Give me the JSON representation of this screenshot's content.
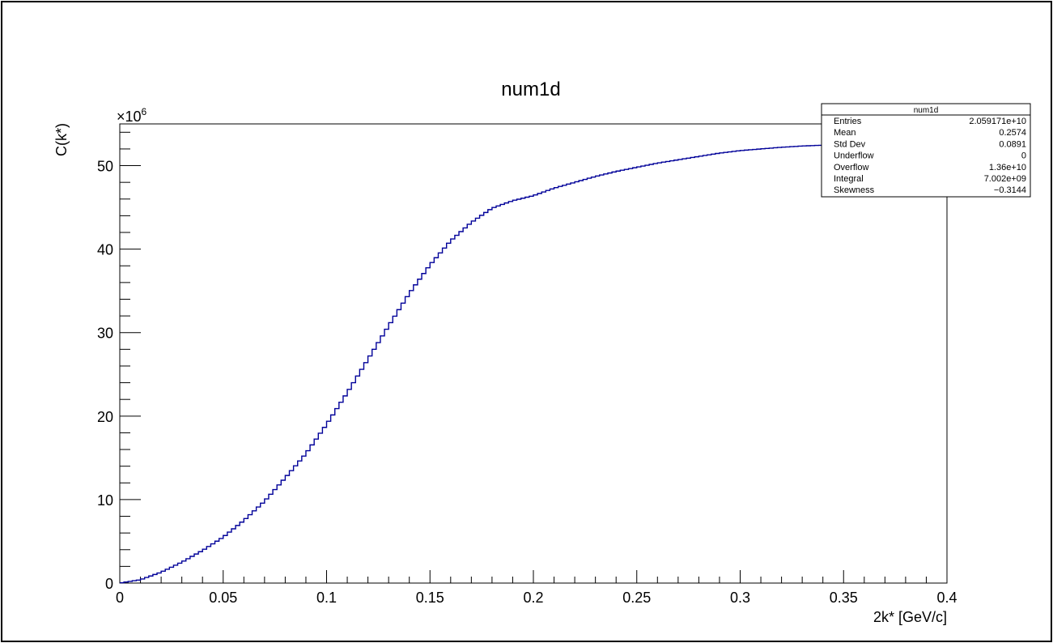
{
  "chart_data": {
    "type": "line",
    "title": "num1d",
    "xlabel": "2k* [GeV/c]",
    "ylabel": "C(k*)",
    "y_exponent_base": "×10",
    "y_exponent_power": "6",
    "xlim": [
      0,
      0.4
    ],
    "ylim": [
      0,
      55000000
    ],
    "x_ticks": [
      {
        "value": 0,
        "label": "0"
      },
      {
        "value": 0.05,
        "label": "0.05"
      },
      {
        "value": 0.1,
        "label": "0.1"
      },
      {
        "value": 0.15,
        "label": "0.15"
      },
      {
        "value": 0.2,
        "label": "0.2"
      },
      {
        "value": 0.25,
        "label": "0.25"
      },
      {
        "value": 0.3,
        "label": "0.3"
      },
      {
        "value": 0.35,
        "label": "0.35"
      },
      {
        "value": 0.4,
        "label": "0.4"
      }
    ],
    "y_ticks": [
      {
        "value": 0,
        "label": "0"
      },
      {
        "value": 10000000,
        "label": "10"
      },
      {
        "value": 20000000,
        "label": "20"
      },
      {
        "value": 30000000,
        "label": "30"
      },
      {
        "value": 40000000,
        "label": "40"
      },
      {
        "value": 50000000,
        "label": "50"
      }
    ],
    "series": [
      {
        "color": "#000099",
        "x": [
          0,
          0.01,
          0.02,
          0.03,
          0.04,
          0.05,
          0.06,
          0.07,
          0.08,
          0.09,
          0.1,
          0.11,
          0.12,
          0.13,
          0.14,
          0.15,
          0.16,
          0.17,
          0.18,
          0.19,
          0.2,
          0.21,
          0.22,
          0.23,
          0.24,
          0.25,
          0.26,
          0.27,
          0.28,
          0.29,
          0.3,
          0.31,
          0.32,
          0.33,
          0.34,
          0.35,
          0.36,
          0.37,
          0.38,
          0.39,
          0.4
        ],
        "y": [
          0,
          400000,
          1300000,
          2500000,
          3900000,
          5500000,
          7500000,
          9800000,
          12600000,
          15500000,
          19000000,
          22800000,
          26800000,
          30800000,
          34700000,
          38100000,
          41000000,
          43200000,
          44900000,
          45800000,
          46400000,
          47300000,
          48000000,
          48700000,
          49300000,
          49800000,
          50300000,
          50700000,
          51100000,
          51500000,
          51800000,
          52000000,
          52200000,
          52350000,
          52450000,
          52550000,
          52600000,
          52650000,
          52700000,
          52750000,
          52800000
        ]
      }
    ],
    "stats_box": {
      "title": "num1d",
      "rows": [
        {
          "label": "Entries",
          "value": "2.059171e+10"
        },
        {
          "label": "Mean",
          "value": "0.2574"
        },
        {
          "label": "Std Dev",
          "value": "0.0891"
        },
        {
          "label": "Underflow",
          "value": "0"
        },
        {
          "label": "Overflow",
          "value": "1.36e+10"
        },
        {
          "label": "Integral",
          "value": "7.002e+09"
        },
        {
          "label": "Skewness",
          "value": "−0.3144"
        }
      ]
    }
  }
}
